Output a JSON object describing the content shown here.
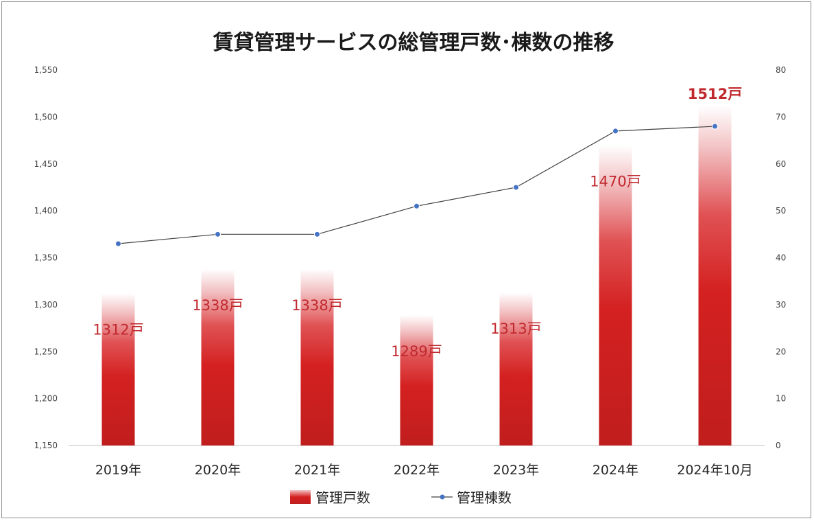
{
  "chart_data": {
    "type": "bar",
    "title": "賃貸管理サービスの総管理戸数･棟数の推移",
    "categories": [
      "2019年",
      "2020年",
      "2021年",
      "2022年",
      "2023年",
      "2024年",
      "2024年10月"
    ],
    "series": [
      {
        "name": "管理戸数",
        "type": "bar",
        "axis": "left",
        "values": [
          1312,
          1338,
          1338,
          1289,
          1313,
          1470,
          1512
        ],
        "data_labels": [
          "1312戸",
          "1338戸",
          "1338戸",
          "1289戸",
          "1313戸",
          "1470戸",
          "1512戸"
        ],
        "color": "#d42020"
      },
      {
        "name": "管理棟数",
        "type": "line",
        "axis": "right",
        "values": [
          43,
          45,
          45,
          51,
          55,
          67,
          68
        ],
        "color": "#4472c4"
      }
    ],
    "left_axis": {
      "min": 1150,
      "max": 1550,
      "step": 50,
      "ticks": [
        "1,150",
        "1,200",
        "1,250",
        "1,300",
        "1,350",
        "1,400",
        "1,450",
        "1,500",
        "1,550"
      ]
    },
    "right_axis": {
      "min": 0,
      "max": 80,
      "step": 10,
      "ticks": [
        "0",
        "10",
        "20",
        "30",
        "40",
        "50",
        "60",
        "70",
        "80"
      ]
    },
    "grid": false,
    "legend_position": "bottom",
    "label_colors": {
      "default": "#c0282d",
      "emphasized": "#c0282d"
    }
  }
}
